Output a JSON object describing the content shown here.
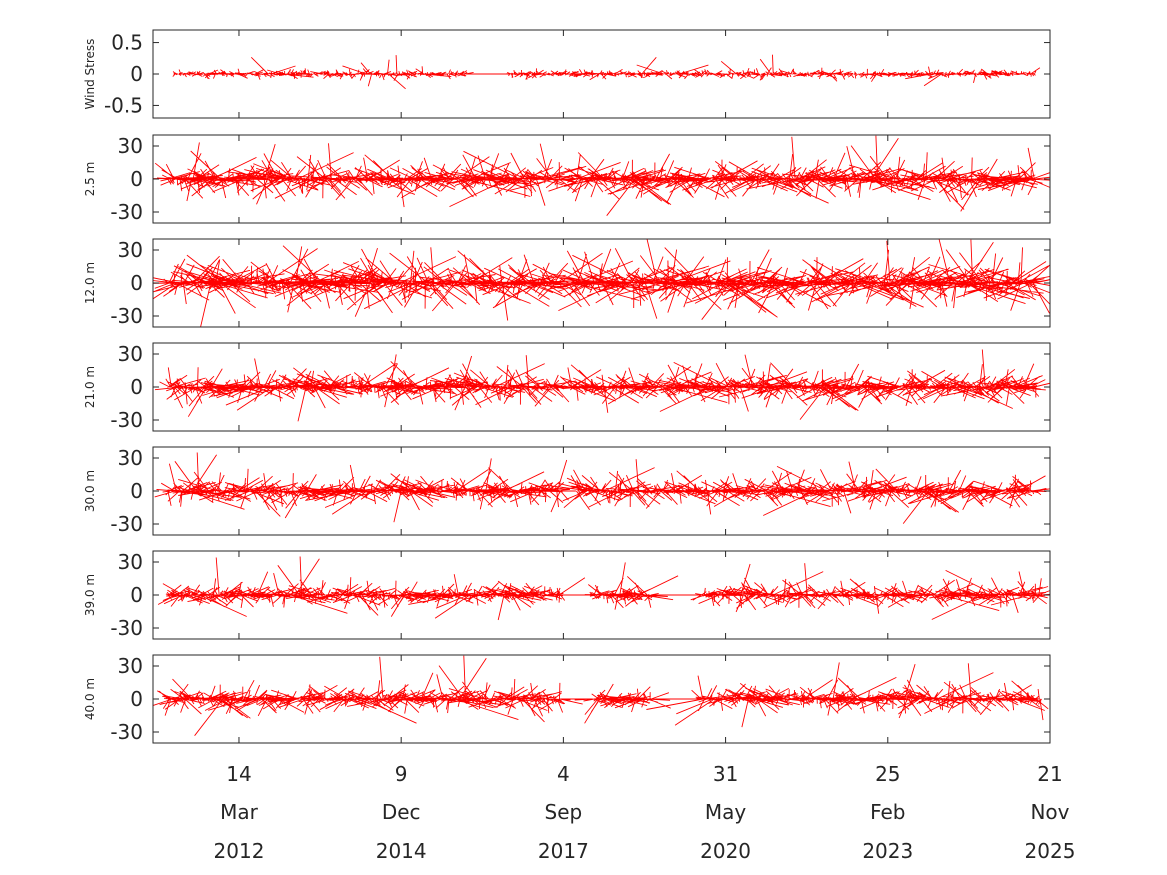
{
  "chart_data": {
    "type": "stick",
    "x_axis": {
      "range": [
        "2010-10-01",
        "2025-11-21"
      ],
      "ticks": [
        {
          "date": "2012-03-14",
          "day": "14",
          "month": "Mar",
          "year": "2012"
        },
        {
          "date": "2014-12-09",
          "day": "9",
          "month": "Dec",
          "year": "2014"
        },
        {
          "date": "2017-09-04",
          "day": "4",
          "month": "Sep",
          "year": "2017"
        },
        {
          "date": "2020-05-31",
          "day": "31",
          "month": "May",
          "year": "2020"
        },
        {
          "date": "2023-02-25",
          "day": "25",
          "month": "Feb",
          "year": "2023"
        },
        {
          "date": "2025-11-21",
          "day": "21",
          "month": "Nov",
          "year": "2025"
        }
      ]
    },
    "panels": [
      {
        "ylabel": "Wind Stress",
        "ylim": [
          -0.7,
          0.7
        ],
        "yticks": [
          0.5,
          0,
          -0.5
        ],
        "ytick_labels": [
          "0.5",
          "0",
          "-0.5"
        ],
        "segments": [
          [
            "2011-02-15",
            "2016-01-15"
          ],
          [
            "2016-10-05",
            "2025-08-20"
          ]
        ],
        "gaps": [
          [
            "2016-01-15",
            "2016-10-05"
          ]
        ],
        "typical_amplitude": 0.05,
        "max_amplitude": 0.35
      },
      {
        "ylabel": "2.5 m",
        "ylim": [
          -40,
          40
        ],
        "yticks": [
          30,
          0,
          -30
        ],
        "ytick_labels": [
          "30",
          "0",
          "-30"
        ],
        "segments": [
          [
            "2011-01-01",
            "2017-08-20"
          ],
          [
            "2017-11-15",
            "2025-09-01"
          ]
        ],
        "gaps": [
          [
            "2017-08-20",
            "2017-11-15"
          ]
        ],
        "typical_amplitude": 12,
        "max_amplitude": 45
      },
      {
        "ylabel": "12.0 m",
        "ylim": [
          -40,
          40
        ],
        "yticks": [
          30,
          0,
          -30
        ],
        "ytick_labels": [
          "30",
          "0",
          "-30"
        ],
        "segments": [
          [
            "2011-01-01",
            "2017-08-20"
          ],
          [
            "2017-10-01",
            "2025-09-01"
          ]
        ],
        "gaps": [
          [
            "2017-08-20",
            "2017-10-01"
          ]
        ],
        "typical_amplitude": 16,
        "max_amplitude": 45
      },
      {
        "ylabel": "21.0 m",
        "ylim": [
          -40,
          40
        ],
        "yticks": [
          30,
          0,
          -30
        ],
        "ytick_labels": [
          "30",
          "0",
          "-30"
        ],
        "segments": [
          [
            "2011-01-01",
            "2017-08-20"
          ],
          [
            "2017-10-01",
            "2025-09-01"
          ]
        ],
        "gaps": [
          [
            "2017-08-20",
            "2017-10-01"
          ]
        ],
        "typical_amplitude": 11,
        "max_amplitude": 40
      },
      {
        "ylabel": "30.0 m",
        "ylim": [
          -40,
          40
        ],
        "yticks": [
          30,
          0,
          -30
        ],
        "ytick_labels": [
          "30",
          "0",
          "-30"
        ],
        "segments": [
          [
            "2011-01-01",
            "2017-08-20"
          ],
          [
            "2017-11-20",
            "2025-09-01"
          ]
        ],
        "gaps": [
          [
            "2017-08-20",
            "2017-11-20"
          ]
        ],
        "typical_amplitude": 10,
        "max_amplitude": 40
      },
      {
        "ylabel": "39.0 m",
        "ylim": [
          -40,
          40
        ],
        "yticks": [
          30,
          0,
          -30
        ],
        "ytick_labels": [
          "30",
          "0",
          "-30"
        ],
        "segments": [
          [
            "2011-01-01",
            "2017-08-20"
          ],
          [
            "2018-03-01",
            "2019-03-01"
          ],
          [
            "2020-01-01",
            "2025-10-01"
          ]
        ],
        "gaps": [
          [
            "2017-08-20",
            "2018-03-01"
          ],
          [
            "2019-03-01",
            "2020-01-01"
          ]
        ],
        "typical_amplitude": 8,
        "max_amplitude": 40
      },
      {
        "ylabel": "40.0 m",
        "ylim": [
          -40,
          40
        ],
        "yticks": [
          30,
          0,
          -30
        ],
        "ytick_labels": [
          "30",
          "0",
          "-30"
        ],
        "segments": [
          [
            "2011-01-01",
            "2017-08-20"
          ],
          [
            "2018-03-01",
            "2019-03-01"
          ],
          [
            "2020-01-01",
            "2025-10-01"
          ]
        ],
        "gaps": [
          [
            "2017-08-20",
            "2018-03-01"
          ],
          [
            "2019-03-01",
            "2020-01-01"
          ]
        ],
        "typical_amplitude": 9,
        "max_amplitude": 45
      }
    ],
    "series_color": "#ff0000",
    "grid": false,
    "legend": "none"
  }
}
